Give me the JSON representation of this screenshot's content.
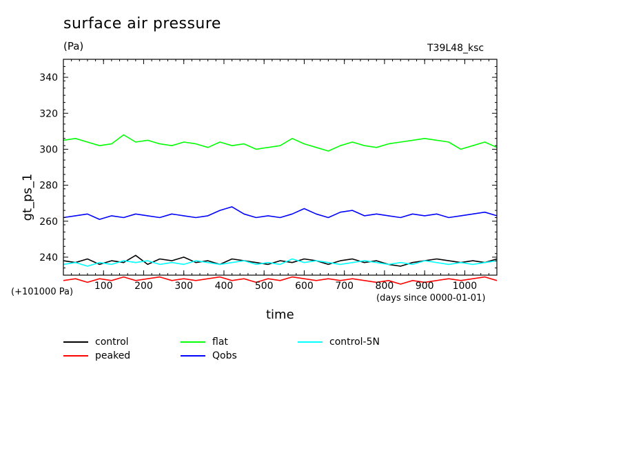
{
  "chart_data": {
    "type": "line",
    "title": "surface air pressure",
    "units": "(Pa)",
    "run_id": "T39L48_ksc",
    "ylabel": "gt_ps_1",
    "xlabel": "time",
    "x_unit_note": "(days since 0000-01-01)",
    "y_offset_note": "(+101000 Pa)",
    "ylim": [
      230,
      350
    ],
    "xlim": [
      0,
      1080
    ],
    "x_ticks": [
      "100",
      "200",
      "300",
      "400",
      "500",
      "600",
      "700",
      "800",
      "900",
      "1000"
    ],
    "x_tick_values": [
      100,
      200,
      300,
      400,
      500,
      600,
      700,
      800,
      900,
      1000
    ],
    "y_ticks": [
      "240",
      "260",
      "280",
      "300",
      "320",
      "340"
    ],
    "y_tick_values": [
      240,
      260,
      280,
      300,
      320,
      340
    ],
    "legend_position": "bottom",
    "series": [
      {
        "name": "control",
        "color": "#000000",
        "x": [
          0,
          30,
          60,
          90,
          120,
          150,
          180,
          210,
          240,
          270,
          300,
          330,
          360,
          390,
          420,
          450,
          480,
          510,
          540,
          570,
          600,
          630,
          660,
          690,
          720,
          750,
          780,
          810,
          840,
          870,
          900,
          930,
          960,
          990,
          1020,
          1050,
          1080
        ],
        "values": [
          238,
          237,
          239,
          236,
          238,
          237,
          241,
          236,
          239,
          238,
          240,
          237,
          238,
          236,
          239,
          238,
          237,
          236,
          238,
          237,
          239,
          238,
          236,
          238,
          239,
          237,
          238,
          236,
          235,
          237,
          238,
          239,
          238,
          237,
          238,
          237,
          239
        ]
      },
      {
        "name": "peaked",
        "color": "#ff0000",
        "x": [
          0,
          30,
          60,
          90,
          120,
          150,
          180,
          210,
          240,
          270,
          300,
          330,
          360,
          390,
          420,
          450,
          480,
          510,
          540,
          570,
          600,
          630,
          660,
          690,
          720,
          750,
          780,
          810,
          840,
          870,
          900,
          930,
          960,
          990,
          1020,
          1050,
          1080
        ],
        "values": [
          227,
          228,
          226,
          228,
          227,
          229,
          227,
          228,
          229,
          227,
          228,
          227,
          228,
          229,
          227,
          228,
          226,
          228,
          227,
          229,
          228,
          227,
          228,
          227,
          228,
          227,
          226,
          227,
          225,
          227,
          226,
          227,
          228,
          227,
          228,
          229,
          227
        ]
      },
      {
        "name": "flat",
        "color": "#00ff00",
        "x": [
          0,
          30,
          60,
          90,
          120,
          150,
          180,
          210,
          240,
          270,
          300,
          330,
          360,
          390,
          420,
          450,
          480,
          510,
          540,
          570,
          600,
          630,
          660,
          690,
          720,
          750,
          780,
          810,
          840,
          870,
          900,
          930,
          960,
          990,
          1020,
          1050,
          1080
        ],
        "values": [
          305,
          306,
          304,
          302,
          303,
          308,
          304,
          305,
          303,
          302,
          304,
          303,
          301,
          304,
          302,
          303,
          300,
          301,
          302,
          306,
          303,
          301,
          299,
          302,
          304,
          302,
          301,
          303,
          304,
          305,
          306,
          305,
          304,
          300,
          302,
          304,
          301
        ]
      },
      {
        "name": "Qobs",
        "color": "#0000ff",
        "x": [
          0,
          30,
          60,
          90,
          120,
          150,
          180,
          210,
          240,
          270,
          300,
          330,
          360,
          390,
          420,
          450,
          480,
          510,
          540,
          570,
          600,
          630,
          660,
          690,
          720,
          750,
          780,
          810,
          840,
          870,
          900,
          930,
          960,
          990,
          1020,
          1050,
          1080
        ],
        "values": [
          262,
          263,
          264,
          261,
          263,
          262,
          264,
          263,
          262,
          264,
          263,
          262,
          263,
          266,
          268,
          264,
          262,
          263,
          262,
          264,
          267,
          264,
          262,
          265,
          266,
          263,
          264,
          263,
          262,
          264,
          263,
          264,
          262,
          263,
          264,
          265,
          263
        ]
      },
      {
        "name": "control-5N",
        "color": "#00ffff",
        "x": [
          0,
          30,
          60,
          90,
          120,
          150,
          180,
          210,
          240,
          270,
          300,
          330,
          360,
          390,
          420,
          450,
          480,
          510,
          540,
          570,
          600,
          630,
          660,
          690,
          720,
          750,
          780,
          810,
          840,
          870,
          900,
          930,
          960,
          990,
          1020,
          1050,
          1080
        ],
        "values": [
          236,
          237,
          235,
          237,
          236,
          238,
          237,
          238,
          236,
          237,
          236,
          238,
          237,
          236,
          237,
          238,
          236,
          237,
          236,
          239,
          237,
          238,
          237,
          236,
          237,
          238,
          237,
          236,
          237,
          236,
          238,
          237,
          236,
          237,
          236,
          237,
          238
        ]
      }
    ]
  }
}
